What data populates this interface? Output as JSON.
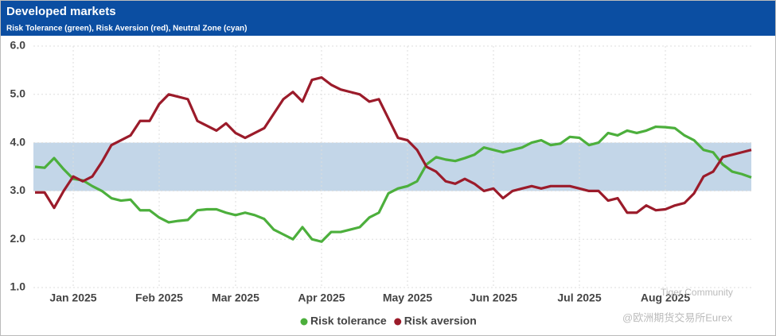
{
  "chart_data": {
    "type": "line",
    "title": "Developed markets",
    "subtitle": "Risk Tolerance (green), Risk Aversion (red), Neutral Zone (cyan)",
    "categories": [
      null,
      null,
      null,
      null,
      "Jan 2025",
      null,
      null,
      null,
      null,
      null,
      null,
      null,
      null,
      "Feb 2025",
      null,
      null,
      null,
      null,
      null,
      null,
      null,
      "Mar 2025",
      null,
      null,
      null,
      null,
      null,
      null,
      null,
      null,
      "Apr 2025",
      null,
      null,
      null,
      null,
      null,
      null,
      null,
      null,
      "May 2025",
      null,
      null,
      null,
      null,
      null,
      null,
      null,
      null,
      "Jun 2025",
      null,
      null,
      null,
      null,
      null,
      null,
      null,
      null,
      "Jul 2025",
      null,
      null,
      null,
      null,
      null,
      null,
      null,
      null,
      "Aug 2025",
      null,
      null,
      null,
      null,
      null,
      null,
      null,
      null,
      null
    ],
    "series": [
      {
        "name": "Risk tolerance",
        "color": "#4caf3c",
        "values": [
          3.5,
          3.48,
          3.68,
          3.45,
          3.25,
          3.22,
          3.1,
          3.0,
          2.85,
          2.8,
          2.82,
          2.6,
          2.6,
          2.45,
          2.35,
          2.38,
          2.4,
          2.6,
          2.62,
          2.62,
          2.55,
          2.5,
          2.55,
          2.5,
          2.42,
          2.2,
          2.1,
          2.0,
          2.25,
          2.0,
          1.95,
          2.15,
          2.15,
          2.2,
          2.25,
          2.45,
          2.55,
          2.95,
          3.05,
          3.1,
          3.2,
          3.55,
          3.7,
          3.65,
          3.62,
          3.68,
          3.75,
          3.9,
          3.85,
          3.8,
          3.85,
          3.9,
          4.0,
          4.05,
          3.95,
          3.98,
          4.12,
          4.1,
          3.95,
          4.0,
          4.2,
          4.15,
          4.25,
          4.2,
          4.25,
          4.33,
          4.32,
          4.3,
          4.15,
          4.05,
          3.85,
          3.8,
          3.55,
          3.4,
          3.35,
          3.28
        ]
      },
      {
        "name": "Risk aversion",
        "color": "#9b1b2a",
        "values": [
          2.97,
          2.97,
          2.65,
          3.0,
          3.3,
          3.2,
          3.3,
          3.6,
          3.95,
          4.05,
          4.15,
          4.45,
          4.45,
          4.8,
          5.0,
          4.95,
          4.9,
          4.45,
          4.35,
          4.25,
          4.4,
          4.2,
          4.1,
          4.2,
          4.3,
          4.6,
          4.9,
          5.05,
          4.85,
          5.3,
          5.35,
          5.2,
          5.1,
          5.05,
          5.0,
          4.85,
          4.9,
          4.5,
          4.1,
          4.05,
          3.85,
          3.5,
          3.4,
          3.2,
          3.15,
          3.25,
          3.15,
          3.0,
          3.05,
          2.85,
          3.0,
          3.05,
          3.1,
          3.05,
          3.1,
          3.1,
          3.1,
          3.05,
          3.0,
          3.0,
          2.8,
          2.85,
          2.55,
          2.55,
          2.7,
          2.6,
          2.62,
          2.7,
          2.75,
          2.95,
          3.3,
          3.4,
          3.7,
          3.75,
          3.8,
          3.85
        ]
      }
    ],
    "neutral_zone": {
      "from": 3,
      "to": 4,
      "color": "#c3d6e8"
    },
    "ylim": [
      1,
      6
    ],
    "yticks": [
      {
        "value": 1,
        "label": "1.0"
      },
      {
        "value": 2,
        "label": "2.0"
      },
      {
        "value": 3,
        "label": "3.0"
      },
      {
        "value": 4,
        "label": "4.0"
      },
      {
        "value": 5,
        "label": "5.0"
      },
      {
        "value": 6,
        "label": "6.0"
      }
    ],
    "grid": true,
    "legend": "bottom",
    "watermark": [
      "Tiger Community",
      "@欧洲期货交易所Eurex"
    ]
  }
}
